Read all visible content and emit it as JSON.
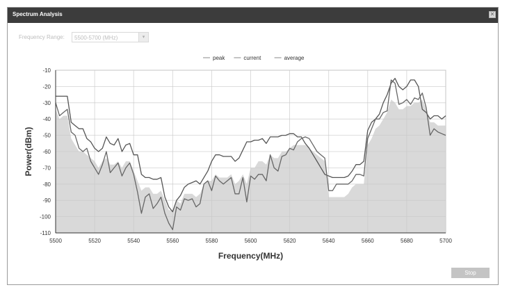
{
  "window": {
    "title": "Spectrum Analysis",
    "close_glyph": "✕"
  },
  "form": {
    "frequency_range_label": "Frequency Range:",
    "frequency_range_value": "5500-5700 (MHz)",
    "dropdown_glyph": "▾"
  },
  "actions": {
    "stop_label": "Stop"
  },
  "chart_data": {
    "type": "line",
    "xlabel": "Frequency(MHz)",
    "ylabel": "Power(dBm)",
    "xlim": [
      5500,
      5700
    ],
    "ylim": [
      -110,
      -10
    ],
    "x_ticks": [
      5500,
      5520,
      5540,
      5560,
      5580,
      5600,
      5620,
      5640,
      5660,
      5680,
      5700
    ],
    "y_ticks": [
      -10,
      -20,
      -30,
      -40,
      -50,
      -60,
      -70,
      -80,
      -90,
      -100,
      -110
    ],
    "grid": true,
    "legend_position": "top-center",
    "colors": {
      "peak": "#555555",
      "current": "#666666",
      "average": "#d9d9d9"
    },
    "series": [
      {
        "name": "peak",
        "style": "line",
        "x": [
          5500,
          5502,
          5504,
          5506,
          5508,
          5510,
          5512,
          5514,
          5516,
          5518,
          5520,
          5522,
          5524,
          5526,
          5528,
          5530,
          5532,
          5534,
          5536,
          5538,
          5540,
          5542,
          5544,
          5546,
          5548,
          5550,
          5552,
          5554,
          5556,
          5558,
          5560,
          5562,
          5564,
          5566,
          5568,
          5570,
          5572,
          5574,
          5576,
          5578,
          5580,
          5582,
          5584,
          5586,
          5588,
          5590,
          5592,
          5594,
          5596,
          5598,
          5600,
          5602,
          5604,
          5606,
          5608,
          5610,
          5612,
          5614,
          5616,
          5618,
          5620,
          5622,
          5624,
          5626,
          5628,
          5630,
          5632,
          5634,
          5636,
          5638,
          5640,
          5642,
          5644,
          5646,
          5648,
          5650,
          5652,
          5654,
          5656,
          5658,
          5660,
          5662,
          5664,
          5666,
          5668,
          5670,
          5672,
          5674,
          5676,
          5678,
          5680,
          5682,
          5684,
          5686,
          5688,
          5690,
          5692,
          5694,
          5696,
          5698,
          5700
        ],
        "values": [
          -26,
          -26,
          -26,
          -26,
          -42,
          -44,
          -46,
          -46,
          -52,
          -54,
          -58,
          -60,
          -58,
          -51,
          -55,
          -56,
          -52,
          -60,
          -56,
          -55,
          -62,
          -62,
          -74,
          -76,
          -76,
          -77,
          -77,
          -76,
          -88,
          -94,
          -97,
          -90,
          -87,
          -82,
          -80,
          -79,
          -78,
          -80,
          -76,
          -72,
          -66,
          -62,
          -62,
          -63,
          -63,
          -63,
          -66,
          -64,
          -59,
          -54,
          -54,
          -53,
          -53,
          -52,
          -55,
          -51,
          -51,
          -51,
          -50,
          -50,
          -49,
          -49,
          -51,
          -51,
          -55,
          -58,
          -62,
          -66,
          -70,
          -74,
          -75,
          -76,
          -76,
          -76,
          -76,
          -75,
          -72,
          -68,
          -68,
          -66,
          -47,
          -42,
          -40,
          -37,
          -30,
          -25,
          -18,
          -15,
          -20,
          -22,
          -20,
          -16,
          -16,
          -20,
          -34,
          -36,
          -40,
          -38,
          -38,
          -40,
          -38
        ]
      },
      {
        "name": "current",
        "style": "line",
        "x": [
          5500,
          5502,
          5504,
          5506,
          5508,
          5510,
          5512,
          5514,
          5516,
          5518,
          5520,
          5522,
          5524,
          5526,
          5528,
          5530,
          5532,
          5534,
          5536,
          5538,
          5540,
          5542,
          5544,
          5546,
          5548,
          5550,
          5552,
          5554,
          5556,
          5558,
          5560,
          5562,
          5564,
          5566,
          5568,
          5570,
          5572,
          5574,
          5576,
          5578,
          5580,
          5582,
          5584,
          5586,
          5588,
          5590,
          5592,
          5594,
          5596,
          5598,
          5600,
          5602,
          5604,
          5606,
          5608,
          5610,
          5612,
          5614,
          5616,
          5618,
          5620,
          5622,
          5624,
          5626,
          5628,
          5630,
          5632,
          5634,
          5636,
          5638,
          5640,
          5642,
          5644,
          5646,
          5648,
          5650,
          5652,
          5654,
          5656,
          5658,
          5660,
          5662,
          5664,
          5666,
          5668,
          5670,
          5672,
          5674,
          5676,
          5678,
          5680,
          5682,
          5684,
          5686,
          5688,
          5690,
          5692,
          5694,
          5696,
          5698,
          5700
        ],
        "values": [
          -30,
          -38,
          -36,
          -34,
          -48,
          -50,
          -58,
          -60,
          -58,
          -66,
          -70,
          -74,
          -68,
          -60,
          -73,
          -70,
          -67,
          -75,
          -70,
          -67,
          -74,
          -85,
          -98,
          -88,
          -86,
          -95,
          -92,
          -88,
          -98,
          -104,
          -108,
          -94,
          -96,
          -89,
          -90,
          -89,
          -94,
          -92,
          -80,
          -78,
          -84,
          -75,
          -78,
          -80,
          -78,
          -76,
          -86,
          -86,
          -76,
          -91,
          -75,
          -77,
          -74,
          -74,
          -78,
          -62,
          -70,
          -72,
          -63,
          -62,
          -58,
          -59,
          -54,
          -52,
          -51,
          -52,
          -56,
          -60,
          -62,
          -64,
          -84,
          -84,
          -80,
          -80,
          -80,
          -80,
          -78,
          -74,
          -74,
          -75,
          -52,
          -46,
          -40,
          -40,
          -36,
          -35,
          -16,
          -18,
          -31,
          -30,
          -28,
          -31,
          -27,
          -28,
          -24,
          -33,
          -50,
          -46,
          -48,
          -49,
          -50
        ]
      },
      {
        "name": "average",
        "style": "area",
        "x": [
          5500,
          5502,
          5504,
          5506,
          5508,
          5510,
          5512,
          5514,
          5516,
          5518,
          5520,
          5522,
          5524,
          5526,
          5528,
          5530,
          5532,
          5534,
          5536,
          5538,
          5540,
          5542,
          5544,
          5546,
          5548,
          5550,
          5552,
          5554,
          5556,
          5558,
          5560,
          5562,
          5564,
          5566,
          5568,
          5570,
          5572,
          5574,
          5576,
          5578,
          5580,
          5582,
          5584,
          5586,
          5588,
          5590,
          5592,
          5594,
          5596,
          5598,
          5600,
          5602,
          5604,
          5606,
          5608,
          5610,
          5612,
          5614,
          5616,
          5618,
          5620,
          5622,
          5624,
          5626,
          5628,
          5630,
          5632,
          5634,
          5636,
          5638,
          5640,
          5642,
          5644,
          5646,
          5648,
          5650,
          5652,
          5654,
          5656,
          5658,
          5660,
          5662,
          5664,
          5666,
          5668,
          5670,
          5672,
          5674,
          5676,
          5678,
          5680,
          5682,
          5684,
          5686,
          5688,
          5690,
          5692,
          5694,
          5696,
          5698,
          5700
        ],
        "values": [
          -34,
          -40,
          -38,
          -38,
          -52,
          -56,
          -60,
          -60,
          -62,
          -64,
          -66,
          -70,
          -66,
          -64,
          -68,
          -68,
          -66,
          -70,
          -66,
          -66,
          -72,
          -78,
          -84,
          -82,
          -82,
          -86,
          -86,
          -84,
          -90,
          -96,
          -96,
          -90,
          -92,
          -86,
          -86,
          -86,
          -88,
          -86,
          -80,
          -78,
          -78,
          -74,
          -76,
          -76,
          -76,
          -74,
          -80,
          -78,
          -74,
          -80,
          -70,
          -70,
          -66,
          -66,
          -68,
          -62,
          -64,
          -64,
          -60,
          -60,
          -58,
          -56,
          -56,
          -56,
          -56,
          -58,
          -60,
          -62,
          -64,
          -66,
          -88,
          -88,
          -88,
          -88,
          -88,
          -86,
          -82,
          -80,
          -80,
          -80,
          -56,
          -52,
          -46,
          -44,
          -40,
          -36,
          -28,
          -30,
          -34,
          -34,
          -32,
          -32,
          -30,
          -30,
          -28,
          -34,
          -42,
          -42,
          -44,
          -44,
          -44
        ]
      }
    ]
  }
}
